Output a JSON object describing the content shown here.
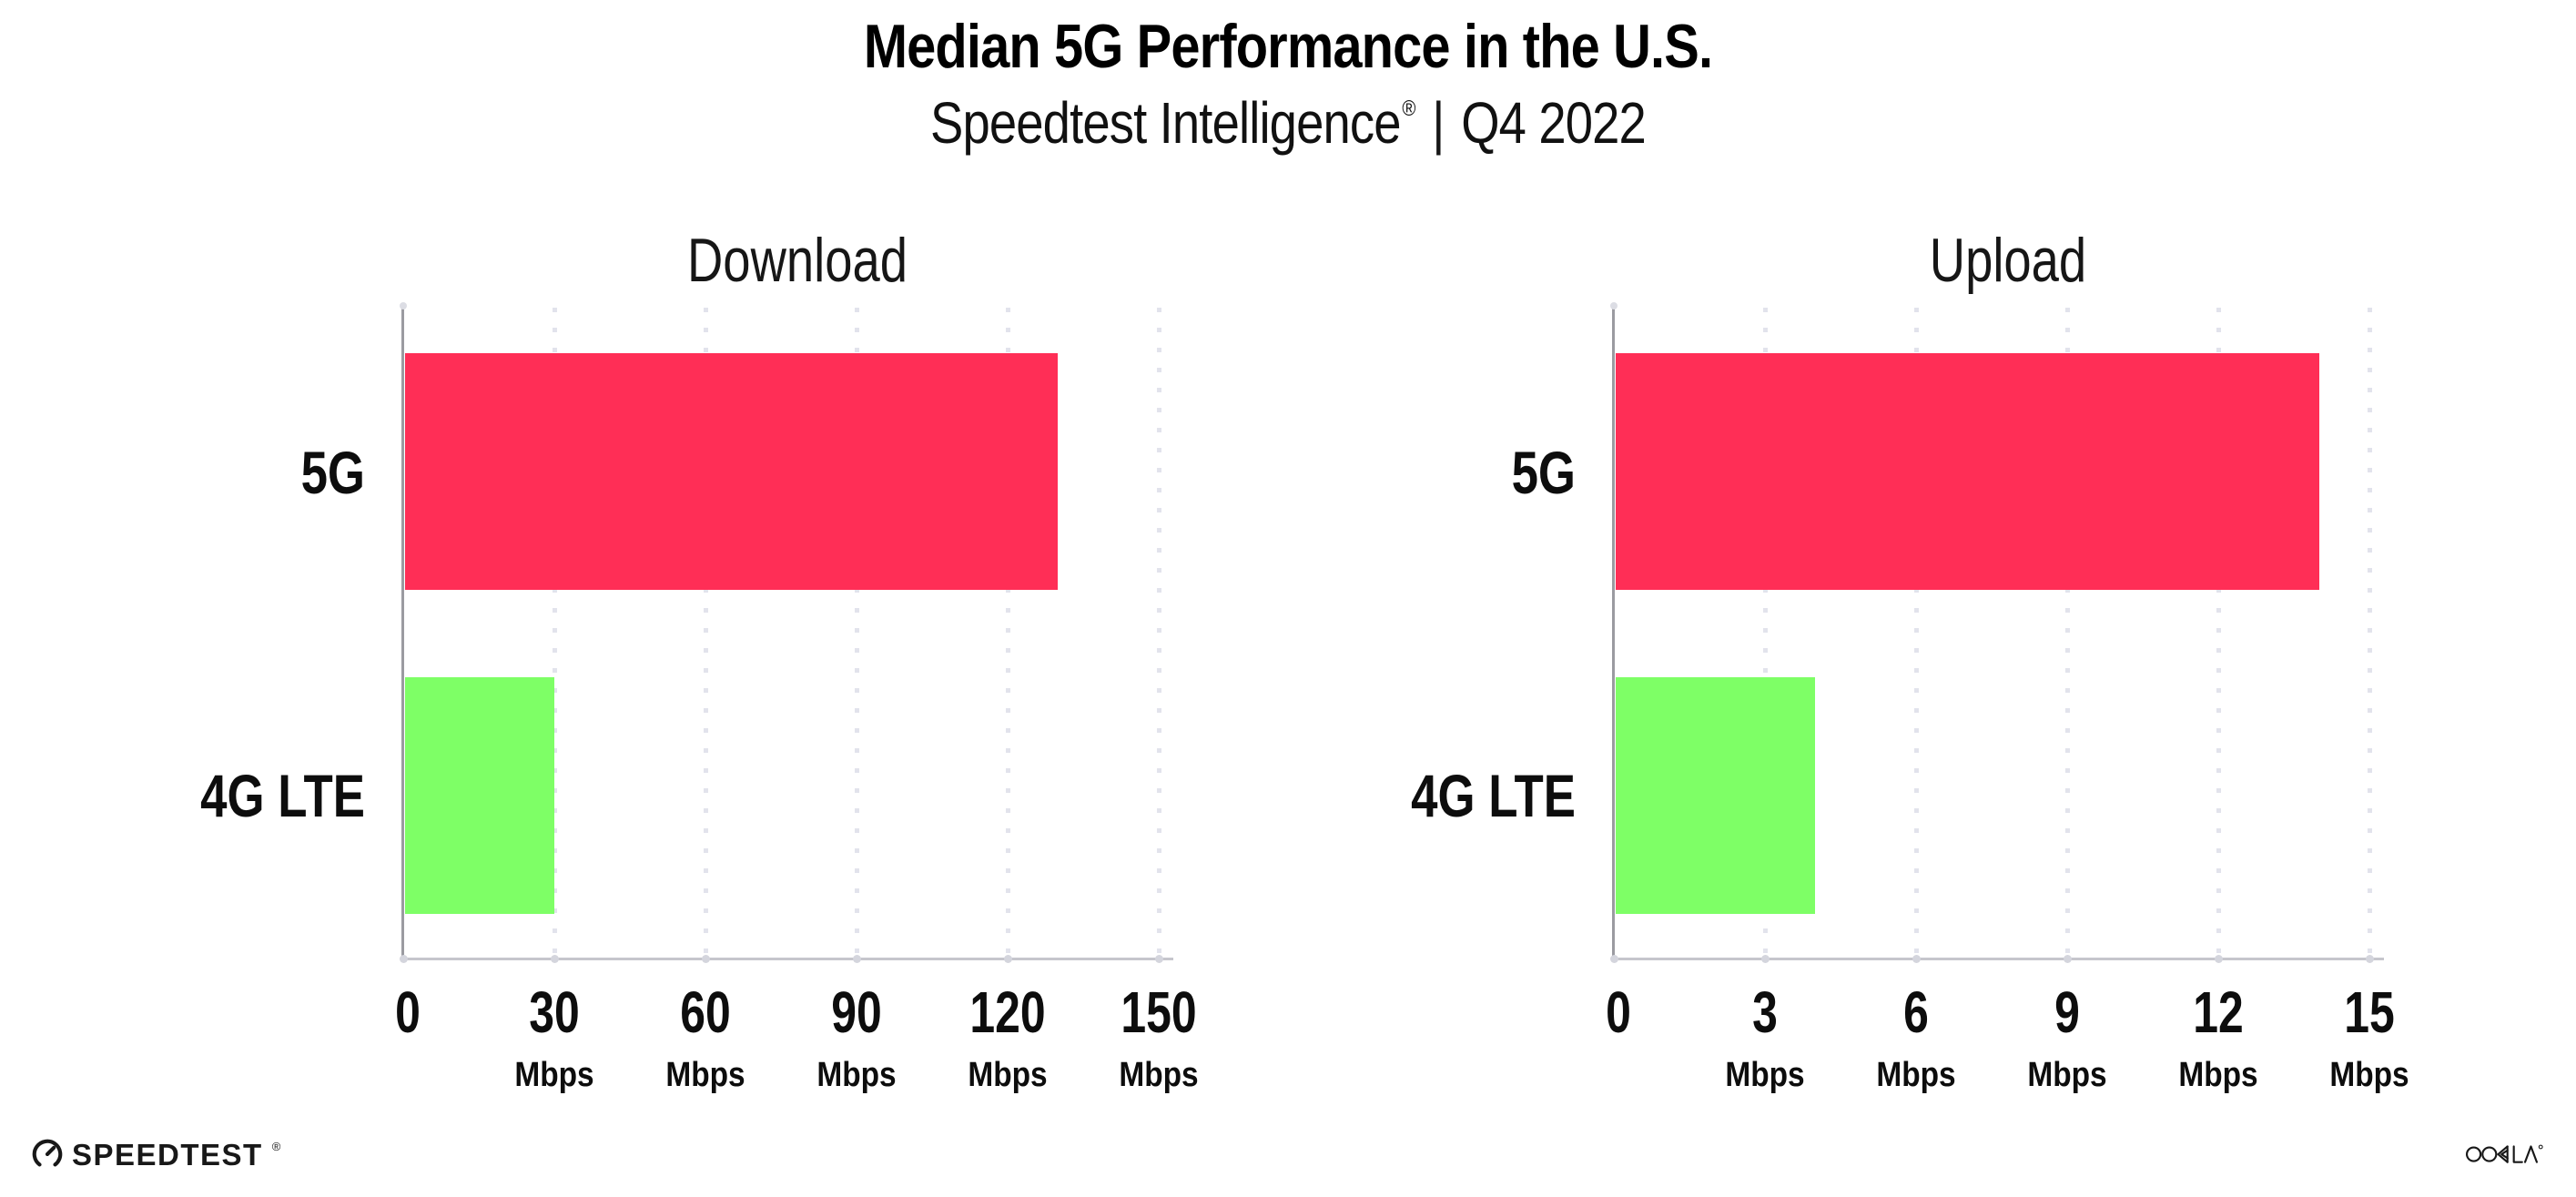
{
  "header": {
    "title": "Median 5G Performance in the U.S.",
    "subtitle_brand": "Speedtest Intelligence",
    "subtitle_registered_mark": "®",
    "subtitle_divider": "|",
    "subtitle_period": "Q4 2022"
  },
  "chart_data": [
    {
      "type": "bar",
      "orientation": "horizontal",
      "title": "Download",
      "categories": [
        "5G",
        "4G LTE"
      ],
      "values": [
        130,
        30
      ],
      "value_unit": "Mbps",
      "xlim": [
        0,
        150
      ],
      "xticks": [
        0,
        30,
        60,
        90,
        120,
        150
      ],
      "tick_unit_label": "Mbps",
      "tick_unit_on_zero": false,
      "bar_colors": [
        "#ff2e56",
        "#7eff66"
      ],
      "grid": "vertical-dotted",
      "legend": "none"
    },
    {
      "type": "bar",
      "orientation": "horizontal",
      "title": "Upload",
      "categories": [
        "5G",
        "4G LTE"
      ],
      "values": [
        14,
        4
      ],
      "value_unit": "Mbps",
      "xlim": [
        0,
        15
      ],
      "xticks": [
        0,
        3,
        6,
        9,
        12,
        15
      ],
      "tick_unit_label": "Mbps",
      "tick_unit_on_zero": false,
      "bar_colors": [
        "#ff2e56",
        "#7eff66"
      ],
      "grid": "vertical-dotted",
      "legend": "none"
    }
  ],
  "footer": {
    "speedtest_wordmark": "SPEEDTEST",
    "speedtest_registered_mark": "®",
    "speedtest_icon": "gauge-icon",
    "ookla_wordmark": "OOKLA",
    "ookla_registered_mark": "®"
  },
  "colors": {
    "bar_5g": "#ff2e56",
    "bar_4g_lte": "#7eff66",
    "y_axis_line": "#9b9ba1",
    "x_axis_line": "#c6c6cc",
    "grid_dots": "#e2e3ec",
    "text": "#0d0d0d",
    "background": "#ffffff"
  }
}
